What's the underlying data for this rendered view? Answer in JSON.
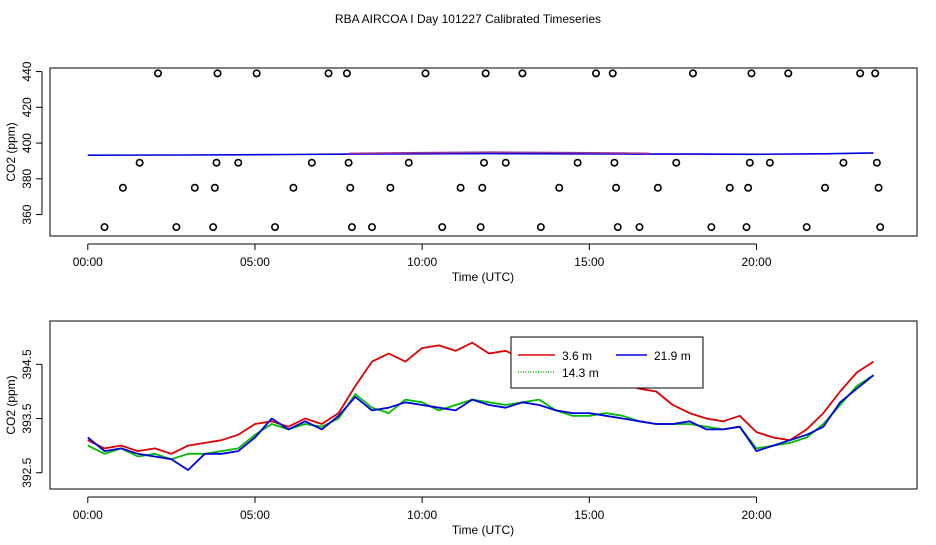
{
  "figure_title": "RBA AIRCOA I  Day 101227  Calibrated Timeseries",
  "colors": {
    "red": "#dd0000",
    "green": "#00bb00",
    "blue": "#0000dd",
    "purple": "#993399"
  },
  "chart_data": [
    {
      "type": "scatter",
      "title": "",
      "xlabel": "Time (UTC)",
      "ylabel": "CO2 (ppm)",
      "xlim": [
        -1.13,
        24.8
      ],
      "ylim": [
        348,
        442
      ],
      "xticks": [
        0,
        5,
        10,
        15,
        20
      ],
      "xtick_labels": [
        "00:00",
        "05:00",
        "10:00",
        "15:00",
        "20:00"
      ],
      "yticks": [
        360,
        380,
        400,
        420,
        440
      ],
      "ytick_labels": [
        "360",
        "380",
        "400",
        "420",
        "440"
      ],
      "calibration_points": [
        [
          0.5,
          353
        ],
        [
          1.05,
          375
        ],
        [
          1.55,
          389
        ],
        [
          2.1,
          439
        ],
        [
          2.65,
          353
        ],
        [
          3.2,
          375
        ],
        [
          3.75,
          353
        ],
        [
          3.8,
          375
        ],
        [
          3.85,
          389
        ],
        [
          3.88,
          439
        ],
        [
          4.5,
          389
        ],
        [
          5.05,
          439
        ],
        [
          5.6,
          353
        ],
        [
          6.15,
          375
        ],
        [
          6.7,
          389
        ],
        [
          7.2,
          439
        ],
        [
          7.75,
          439
        ],
        [
          7.8,
          389
        ],
        [
          7.85,
          375
        ],
        [
          7.9,
          353
        ],
        [
          8.5,
          353
        ],
        [
          9.05,
          375
        ],
        [
          9.6,
          389
        ],
        [
          10.1,
          439
        ],
        [
          10.6,
          353
        ],
        [
          11.15,
          375
        ],
        [
          11.75,
          353
        ],
        [
          11.8,
          375
        ],
        [
          11.85,
          389
        ],
        [
          11.9,
          439
        ],
        [
          12.5,
          389
        ],
        [
          13.0,
          439
        ],
        [
          13.55,
          353
        ],
        [
          14.1,
          375
        ],
        [
          14.65,
          389
        ],
        [
          15.2,
          439
        ],
        [
          15.7,
          439
        ],
        [
          15.75,
          389
        ],
        [
          15.8,
          375
        ],
        [
          15.85,
          353
        ],
        [
          16.5,
          353
        ],
        [
          17.05,
          375
        ],
        [
          17.6,
          389
        ],
        [
          18.1,
          439
        ],
        [
          18.65,
          353
        ],
        [
          19.2,
          375
        ],
        [
          19.7,
          353
        ],
        [
          19.75,
          375
        ],
        [
          19.8,
          389
        ],
        [
          19.85,
          439
        ],
        [
          20.4,
          389
        ],
        [
          20.95,
          439
        ],
        [
          21.5,
          353
        ],
        [
          22.05,
          375
        ],
        [
          22.6,
          389
        ],
        [
          23.1,
          439
        ],
        [
          23.55,
          439
        ],
        [
          23.6,
          389
        ],
        [
          23.65,
          375
        ],
        [
          23.7,
          353
        ]
      ],
      "series": [
        {
          "name": "21.9 m",
          "color": "blue",
          "x": [
            0,
            3,
            6,
            8,
            10,
            12,
            14,
            16,
            18,
            20,
            22,
            23.5
          ],
          "values": [
            393.2,
            393.3,
            393.6,
            393.8,
            394.0,
            394.1,
            394.0,
            393.9,
            393.8,
            393.7,
            394.0,
            394.5
          ]
        },
        {
          "name": "3.6 m",
          "color": "purple",
          "x": [
            7.8,
            10,
            12,
            14,
            16,
            16.8
          ],
          "values": [
            394.2,
            394.6,
            394.9,
            394.7,
            394.4,
            394.2
          ]
        }
      ]
    },
    {
      "type": "line",
      "title": "",
      "xlabel": "Time (UTC)",
      "ylabel": "CO2 (ppm)",
      "xlim": [
        -1.13,
        24.8
      ],
      "ylim": [
        392.2,
        395.3
      ],
      "xticks": [
        0,
        5,
        10,
        15,
        20
      ],
      "xtick_labels": [
        "00:00",
        "05:00",
        "10:00",
        "15:00",
        "20:00"
      ],
      "yticks": [
        392.5,
        393.5,
        394.5
      ],
      "ytick_labels": [
        "392.5",
        "393.5",
        "394.5"
      ],
      "legend": {
        "position": "top-center",
        "entries": [
          {
            "label": "3.6 m",
            "color": "red"
          },
          {
            "label": "21.9 m",
            "color": "blue"
          },
          {
            "label": "14.3 m",
            "color": "green"
          }
        ]
      },
      "series": [
        {
          "name": "3.6 m",
          "color": "red",
          "x": [
            0,
            0.5,
            1,
            1.5,
            2,
            2.5,
            3,
            3.5,
            4,
            4.5,
            5,
            5.5,
            6,
            6.5,
            7,
            7.5,
            8,
            8.5,
            9,
            9.5,
            10,
            10.5,
            11,
            11.5,
            12,
            12.5,
            13,
            13.5,
            14,
            14.5,
            15,
            15.5,
            16,
            16.5,
            17,
            17.5,
            18,
            18.5,
            19,
            19.5,
            20,
            20.5,
            21,
            21.5,
            22,
            22.5,
            23,
            23.5
          ],
          "values": [
            393.1,
            392.95,
            393.0,
            392.9,
            392.95,
            392.85,
            393.0,
            393.05,
            393.1,
            393.2,
            393.4,
            393.45,
            393.35,
            393.5,
            393.4,
            393.6,
            394.1,
            394.55,
            394.7,
            394.55,
            394.8,
            394.85,
            394.75,
            394.9,
            394.7,
            394.75,
            394.6,
            394.45,
            394.55,
            394.3,
            394.35,
            394.4,
            394.15,
            394.05,
            394.0,
            393.75,
            393.6,
            393.5,
            393.45,
            393.55,
            393.25,
            393.15,
            393.1,
            393.3,
            393.6,
            394.0,
            394.35,
            394.55
          ]
        },
        {
          "name": "14.3 m",
          "color": "green",
          "x": [
            0,
            0.5,
            1,
            1.5,
            2,
            2.5,
            3,
            3.5,
            4,
            4.5,
            5,
            5.5,
            6,
            6.5,
            7,
            7.5,
            8,
            8.5,
            9,
            9.5,
            10,
            10.5,
            11,
            11.5,
            12,
            12.5,
            13,
            13.5,
            14,
            14.5,
            15,
            15.5,
            16,
            16.5,
            17,
            17.5,
            18,
            18.5,
            19,
            19.5,
            20,
            20.5,
            21,
            21.5,
            22,
            22.5,
            23,
            23.5
          ],
          "values": [
            393.0,
            392.85,
            392.95,
            392.8,
            392.85,
            392.75,
            392.85,
            392.85,
            392.9,
            392.95,
            393.2,
            393.4,
            393.3,
            393.4,
            393.35,
            393.5,
            393.95,
            393.7,
            393.6,
            393.85,
            393.8,
            393.65,
            393.75,
            393.85,
            393.8,
            393.75,
            393.8,
            393.85,
            393.65,
            393.55,
            393.55,
            393.6,
            393.55,
            393.45,
            393.4,
            393.4,
            393.4,
            393.35,
            393.3,
            393.35,
            392.95,
            393.0,
            393.05,
            393.15,
            393.4,
            393.75,
            394.1,
            394.3
          ]
        },
        {
          "name": "21.9 m",
          "color": "blue",
          "x": [
            0,
            0.5,
            1,
            1.5,
            2,
            2.5,
            3,
            3.5,
            4,
            4.5,
            5,
            5.5,
            6,
            6.5,
            7,
            7.5,
            8,
            8.5,
            9,
            9.5,
            10,
            10.5,
            11,
            11.5,
            12,
            12.5,
            13,
            13.5,
            14,
            14.5,
            15,
            15.5,
            16,
            16.5,
            17,
            17.5,
            18,
            18.5,
            19,
            19.5,
            20,
            20.5,
            21,
            21.5,
            22,
            22.5,
            23,
            23.5
          ],
          "values": [
            393.15,
            392.9,
            392.95,
            392.85,
            392.8,
            392.75,
            392.55,
            392.85,
            392.85,
            392.9,
            393.15,
            393.5,
            393.3,
            393.45,
            393.3,
            393.55,
            393.9,
            393.65,
            393.7,
            393.8,
            393.75,
            393.7,
            393.65,
            393.85,
            393.75,
            393.7,
            393.8,
            393.75,
            393.65,
            393.6,
            393.6,
            393.55,
            393.5,
            393.45,
            393.4,
            393.4,
            393.45,
            393.3,
            393.3,
            393.35,
            392.9,
            393.0,
            393.1,
            393.2,
            393.35,
            393.8,
            394.05,
            394.3
          ]
        }
      ]
    }
  ]
}
